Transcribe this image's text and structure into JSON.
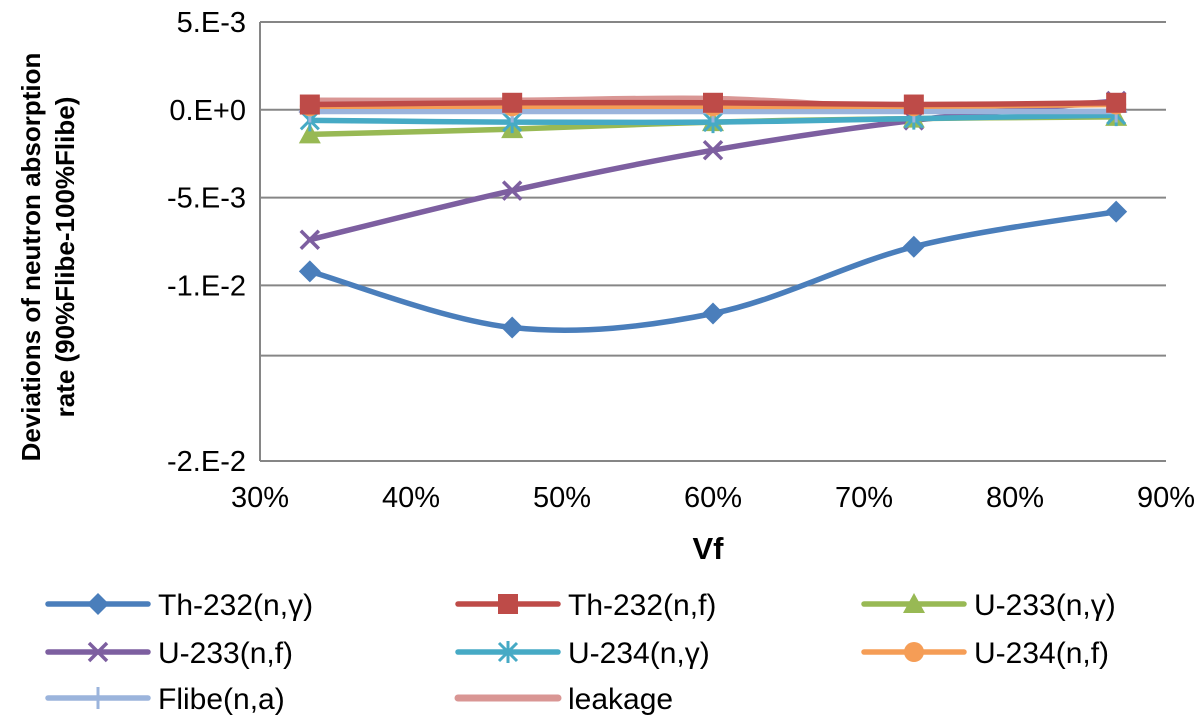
{
  "chart_data": {
    "type": "line",
    "title": "",
    "xlabel": "Vf",
    "ylabel_lines": [
      "Deviations of neutron absorption",
      "rate (90%Flibe-100%Flibe)"
    ],
    "xlim": [
      0.3,
      0.9
    ],
    "ylim": [
      -0.02,
      0.005
    ],
    "x_ticks": [
      {
        "value": 0.3,
        "label": "30%"
      },
      {
        "value": 0.4,
        "label": "40%"
      },
      {
        "value": 0.5,
        "label": "50%"
      },
      {
        "value": 0.6,
        "label": "60%"
      },
      {
        "value": 0.7,
        "label": "70%"
      },
      {
        "value": 0.8,
        "label": "80%"
      },
      {
        "value": 0.9,
        "label": "90%"
      }
    ],
    "y_ticks": [
      {
        "value": 0.005,
        "label": "5.E-3"
      },
      {
        "value": 0.0,
        "label": "0.E+0"
      },
      {
        "value": -0.005,
        "label": "-5.E-3"
      },
      {
        "value": -0.01,
        "label": "-1.E-2"
      },
      {
        "value": -0.02,
        "label": "-2.E-2"
      }
    ],
    "gridlines_y": [
      0.005,
      0.0,
      -0.005,
      -0.01,
      -0.014,
      -0.02
    ],
    "grid": true,
    "legend_position": "bottom",
    "x": [
      0.333,
      0.467,
      0.6,
      0.733,
      0.867
    ],
    "series": [
      {
        "name": "Th-232(n,γ)",
        "color": "#4a7ebb",
        "marker": "diamond",
        "values": [
          -0.0092,
          -0.0124,
          -0.0116,
          -0.0078,
          -0.0058
        ]
      },
      {
        "name": "Th-232(n,f)",
        "color": "#be4b48",
        "marker": "square",
        "values": [
          0.0003,
          0.0004,
          0.0004,
          0.0003,
          0.0004
        ]
      },
      {
        "name": "U-233(n,γ)",
        "color": "#98b954",
        "marker": "triangle",
        "values": [
          -0.0014,
          -0.0011,
          -0.0007,
          -0.0005,
          -0.0004
        ]
      },
      {
        "name": "U-233(n,f)",
        "color": "#7d5fa0",
        "marker": "x",
        "values": [
          -0.0074,
          -0.0046,
          -0.0023,
          -0.0006,
          0.0005
        ]
      },
      {
        "name": "U-234(n,γ)",
        "color": "#46aac5",
        "marker": "star",
        "values": [
          -0.0006,
          -0.0007,
          -0.0007,
          -0.0005,
          -0.0003
        ]
      },
      {
        "name": "U-234(n,f)",
        "color": "#f59d56",
        "marker": "circle",
        "values": [
          0.0002,
          0.0002,
          0.0002,
          0.0002,
          0.0003
        ]
      },
      {
        "name": "Flibe(n,a)",
        "color": "#9bb4dc",
        "marker": "plus",
        "values": [
          -0.0001,
          -0.0001,
          -0.0001,
          -0.0001,
          -0.0001
        ]
      },
      {
        "name": "leakage",
        "color": "#d99694",
        "marker": "none",
        "values": [
          0.0005,
          0.0005,
          0.0006,
          0.0001,
          0.0004
        ]
      }
    ]
  }
}
